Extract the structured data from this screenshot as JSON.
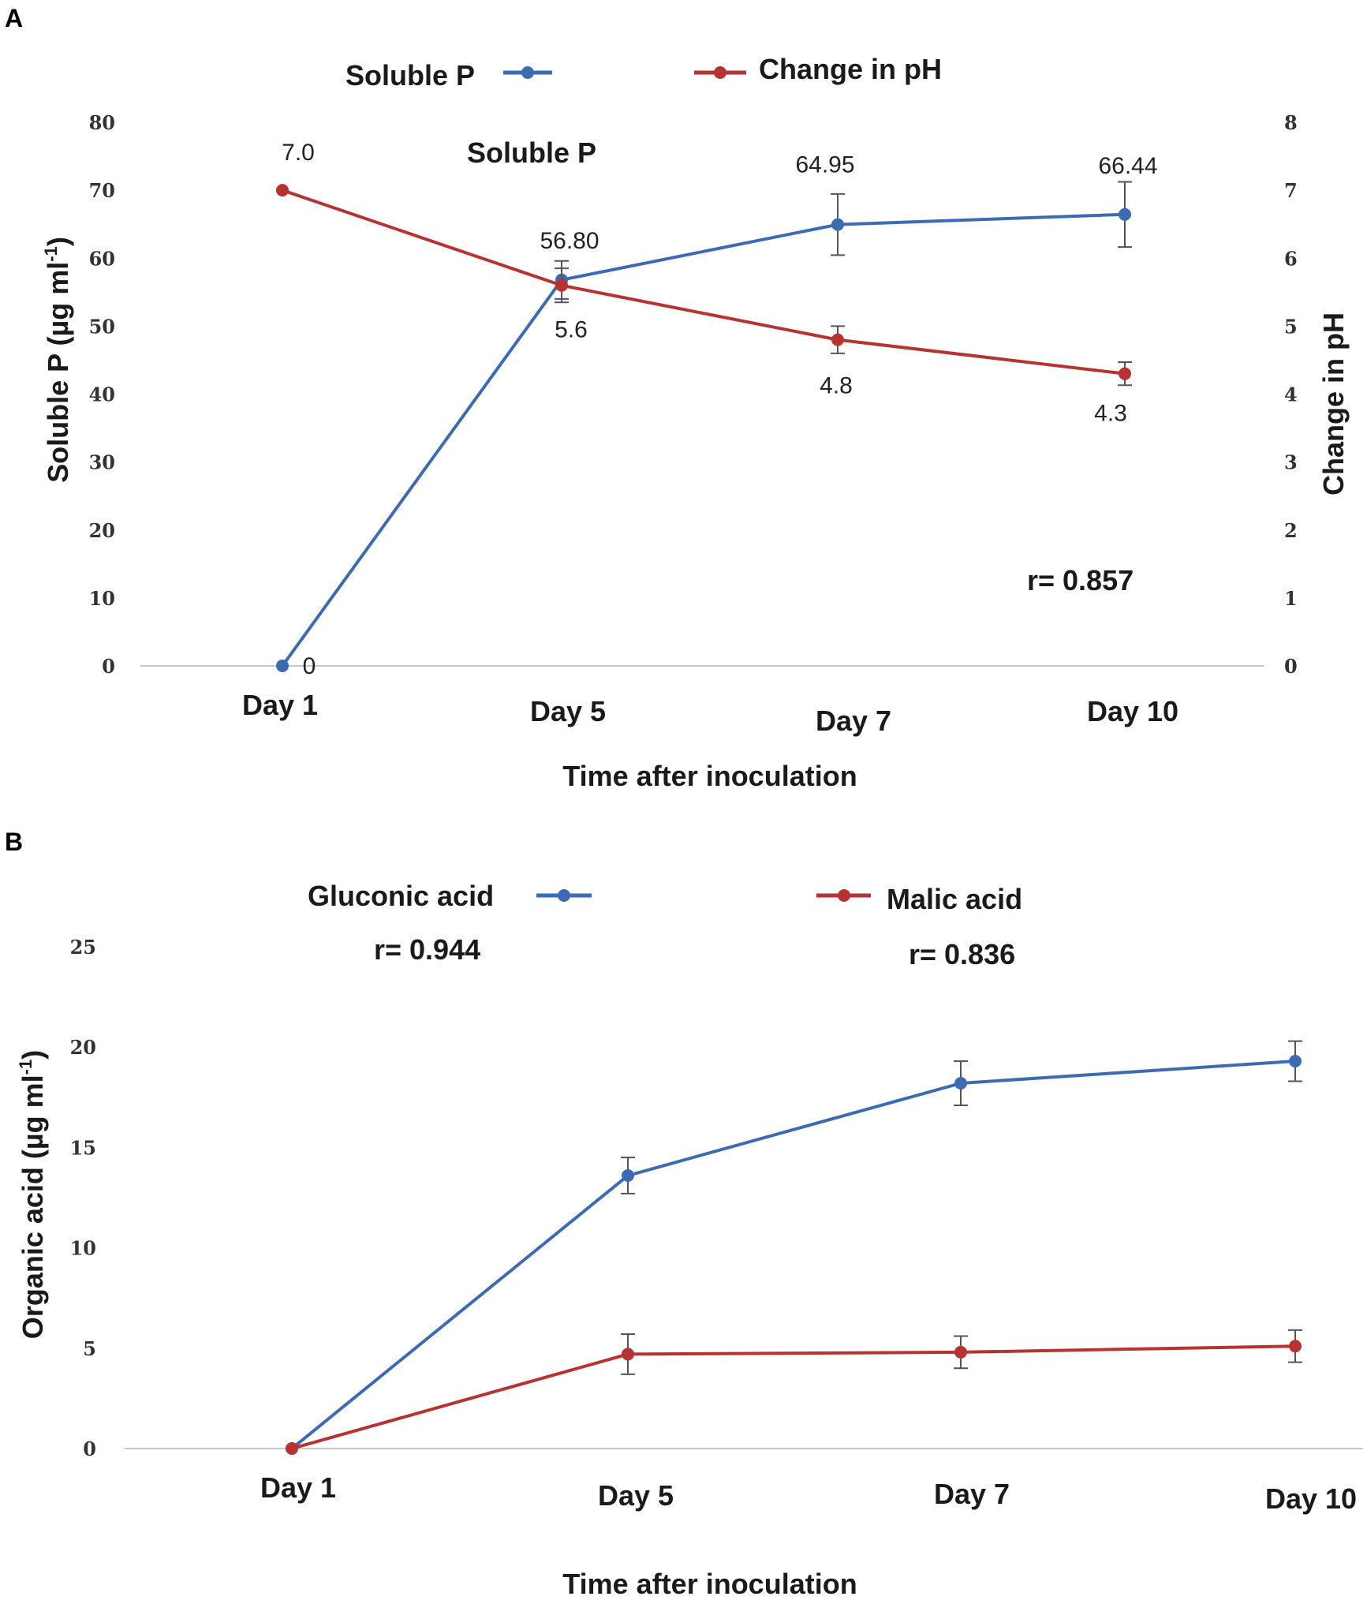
{
  "chart_data": [
    {
      "panel": "A",
      "type": "line",
      "title": "Soluble P",
      "categories": [
        "Day 1",
        "Day 5",
        "Day 7",
        "Day 10"
      ],
      "xlabel": "Time after inoculation",
      "ylabel": "Soluble P (µg ml",
      "ylabel_sup": "-1",
      "ylabel_close": ")",
      "y2label": "Change in pH",
      "ylim": [
        0,
        80
      ],
      "yticks": [
        "0",
        "10",
        "20",
        "30",
        "40",
        "50",
        "60",
        "70",
        "80"
      ],
      "y2lim": [
        0,
        8
      ],
      "y2ticks": [
        "0",
        "1",
        "2",
        "3",
        "4",
        "5",
        "6",
        "7",
        "8"
      ],
      "grid": false,
      "legend": "top",
      "annotation": "r= 0.857",
      "series": [
        {
          "name": "Soluble P",
          "axis": "left",
          "color": "#3d6bb3",
          "values": [
            0,
            56.8,
            64.95,
            66.44
          ],
          "errors": [
            0,
            2.8,
            4.5,
            4.8
          ],
          "labels": [
            "0",
            "56.80",
            "64.95",
            "66.44"
          ]
        },
        {
          "name": "Change in pH",
          "axis": "right",
          "color": "#b83232",
          "values": [
            7.0,
            5.6,
            4.8,
            4.3
          ],
          "errors": [
            0,
            0.25,
            0.2,
            0.17
          ],
          "labels": [
            "7.0",
            "5.6",
            "4.8",
            "4.3"
          ]
        }
      ]
    },
    {
      "panel": "B",
      "type": "line",
      "title": "",
      "categories": [
        "Day 1",
        "Day 5",
        "Day 7",
        "Day 10"
      ],
      "xlabel": "Time after inoculation",
      "ylabel": "Organic acid (µg ml",
      "ylabel_sup": "-1",
      "ylabel_close": ")",
      "ylim": [
        0,
        25
      ],
      "yticks": [
        "0",
        "5",
        "10",
        "15",
        "20",
        "25"
      ],
      "grid": false,
      "legend": "top",
      "series": [
        {
          "name": "Gluconic acid",
          "color": "#3d6bb3",
          "values": [
            0,
            13.6,
            18.2,
            19.3
          ],
          "errors": [
            0,
            0.9,
            1.1,
            1.0
          ],
          "r": "r= 0.944"
        },
        {
          "name": "Malic acid",
          "color": "#b83232",
          "values": [
            0,
            4.7,
            4.8,
            5.1
          ],
          "errors": [
            0,
            1.0,
            0.8,
            0.8
          ],
          "r": "r= 0.836"
        }
      ]
    }
  ]
}
